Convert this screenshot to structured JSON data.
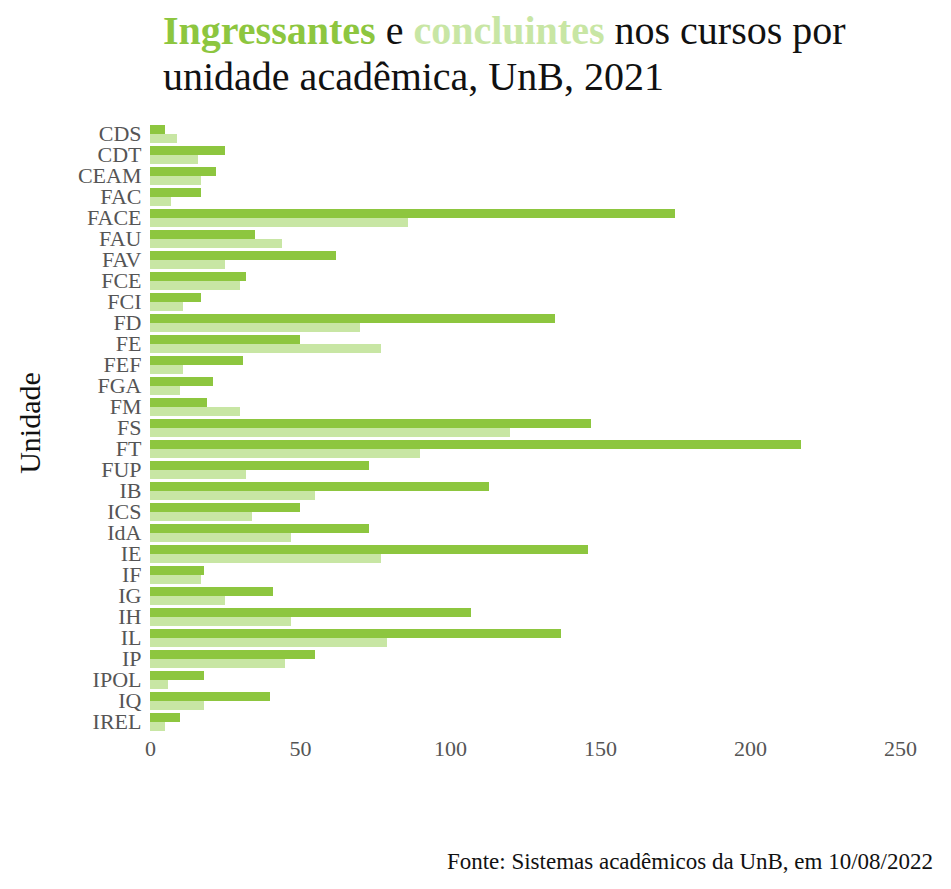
{
  "chart_data": {
    "type": "bar",
    "orientation": "horizontal",
    "title": "Ingressantes e concluintes nos cursos por unidade acadêmica, UnB, 2021",
    "caption": "Fonte: Sistemas acadêmicos da UnB, em 10/08/2022",
    "y_label": "Unidade",
    "categories": [
      "CDS",
      "CDT",
      "CEAM",
      "FAC",
      "FACE",
      "FAU",
      "FAV",
      "FCE",
      "FCI",
      "FD",
      "FE",
      "FEF",
      "FGA",
      "FM",
      "FS",
      "FT",
      "FUP",
      "IB",
      "ICS",
      "IdA",
      "IE",
      "IF",
      "IG",
      "IH",
      "IL",
      "IP",
      "IPOL",
      "IQ",
      "IREL"
    ],
    "series": [
      {
        "name": "Ingressantes",
        "color": "#8dc63f",
        "values": [
          5,
          25,
          22,
          17,
          175,
          35,
          62,
          32,
          17,
          135,
          50,
          31,
          21,
          19,
          147,
          217,
          73,
          113,
          50,
          73,
          146,
          18,
          41,
          107,
          137,
          55,
          18,
          40,
          10
        ]
      },
      {
        "name": "concluintes",
        "color": "#c8e6a4",
        "values": [
          9,
          16,
          17,
          7,
          86,
          44,
          25,
          30,
          11,
          70,
          77,
          11,
          10,
          30,
          120,
          90,
          32,
          55,
          34,
          47,
          77,
          17,
          25,
          47,
          79,
          45,
          6,
          18,
          5
        ]
      }
    ],
    "xlim": [
      0,
      250
    ],
    "xticks": [
      0,
      50,
      100,
      150,
      200,
      250
    ],
    "grid": false
  }
}
